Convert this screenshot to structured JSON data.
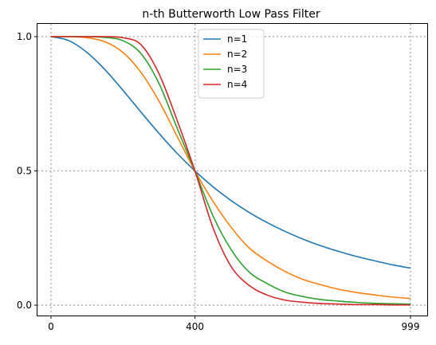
{
  "chart_data": {
    "type": "line",
    "title": "n-th Butterworth Low Pass Filter",
    "xlabel": "",
    "ylabel": "",
    "xlim": [
      0,
      999
    ],
    "ylim": [
      0.0,
      1.0
    ],
    "x_ticks": [
      0,
      400,
      999
    ],
    "x_tick_labels": [
      "0",
      "400",
      "999"
    ],
    "y_ticks": [
      0.0,
      0.5,
      1.0
    ],
    "y_tick_labels": [
      "0.0",
      "0.5",
      "1.0"
    ],
    "grid": true,
    "grid_style": "dotted",
    "legend_position": "top-center",
    "x": [
      0,
      50,
      100,
      150,
      200,
      250,
      300,
      350,
      400,
      450,
      500,
      550,
      600,
      650,
      700,
      750,
      800,
      850,
      900,
      950,
      999
    ],
    "series": [
      {
        "name": "n=1",
        "color": "#1f77b4",
        "values": [
          1.0,
          0.985,
          0.941,
          0.877,
          0.8,
          0.719,
          0.64,
          0.566,
          0.5,
          0.441,
          0.39,
          0.346,
          0.308,
          0.275,
          0.246,
          0.221,
          0.2,
          0.181,
          0.165,
          0.15,
          0.138
        ]
      },
      {
        "name": "n=2",
        "color": "#ff7f0e",
        "values": [
          1.0,
          1.0,
          0.996,
          0.981,
          0.941,
          0.867,
          0.76,
          0.63,
          0.5,
          0.387,
          0.291,
          0.214,
          0.165,
          0.126,
          0.096,
          0.076,
          0.059,
          0.047,
          0.038,
          0.03,
          0.025
        ]
      },
      {
        "name": "n=3",
        "color": "#2ca02c",
        "values": [
          1.0,
          1.0,
          1.0,
          0.997,
          0.985,
          0.937,
          0.826,
          0.661,
          0.5,
          0.333,
          0.208,
          0.124,
          0.081,
          0.049,
          0.032,
          0.021,
          0.015,
          0.01,
          0.007,
          0.005,
          0.004
        ]
      },
      {
        "name": "n=4",
        "color": "#d62728",
        "values": [
          1.0,
          1.0,
          1.0,
          1.0,
          0.996,
          0.97,
          0.862,
          0.69,
          0.5,
          0.289,
          0.145,
          0.074,
          0.038,
          0.019,
          0.011,
          0.006,
          0.004,
          0.002,
          0.002,
          0.001,
          0.001
        ]
      }
    ]
  }
}
